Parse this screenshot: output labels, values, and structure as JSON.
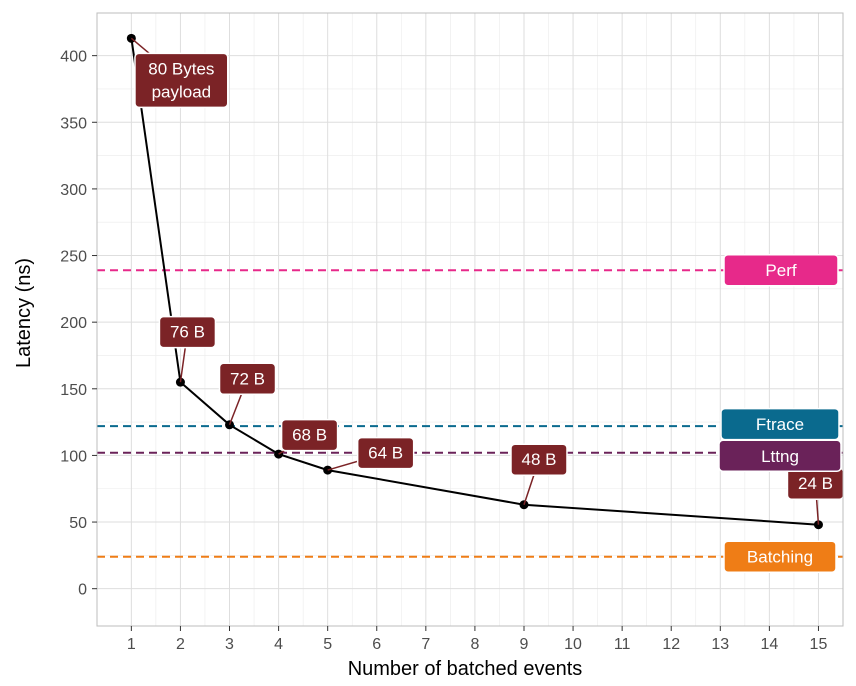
{
  "chart_data": {
    "type": "line",
    "title": "",
    "xlabel": "Number of batched events",
    "ylabel": "Latency (ns)",
    "x_ticks": [
      1,
      2,
      3,
      4,
      5,
      6,
      7,
      8,
      9,
      10,
      11,
      12,
      13,
      14,
      15
    ],
    "y_ticks": [
      0,
      50,
      100,
      150,
      200,
      250,
      300,
      350,
      400
    ],
    "xlim": [
      0.3,
      15.5
    ],
    "ylim": [
      -28,
      432
    ],
    "grid": true,
    "series": [
      {
        "color": "#000000",
        "points": [
          {
            "x": 1,
            "y": 413,
            "label": "80 Bytes\npayload"
          },
          {
            "x": 2,
            "y": 155,
            "label": "76 B"
          },
          {
            "x": 3,
            "y": 123,
            "label": "72 B"
          },
          {
            "x": 4,
            "y": 101,
            "label": "68 B"
          },
          {
            "x": 5,
            "y": 89,
            "label": "64 B"
          },
          {
            "x": 9,
            "y": 63,
            "label": "48 B"
          },
          {
            "x": 15,
            "y": 48,
            "label": "24 B"
          }
        ]
      }
    ],
    "point_label_color": "#7b2326",
    "reference_lines": [
      {
        "name": "Perf",
        "y": 239,
        "color": "#e7298a"
      },
      {
        "name": "Ftrace",
        "y": 122,
        "color": "#0a6a8e"
      },
      {
        "name": "Lttng",
        "y": 102,
        "color": "#6a2259"
      },
      {
        "name": "Batching",
        "y": 24,
        "color": "#ef7d16"
      }
    ]
  }
}
